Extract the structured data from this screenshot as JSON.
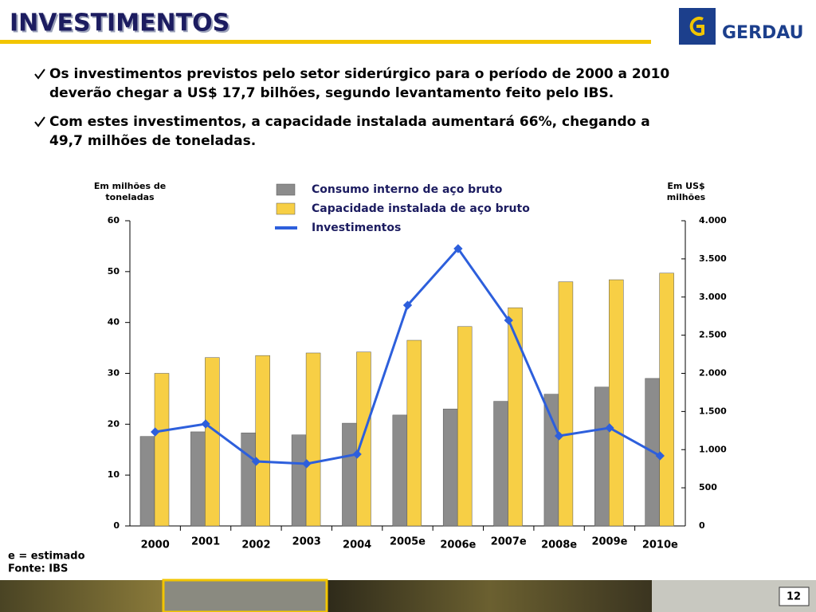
{
  "header": {
    "title": "INVESTIMENTOS",
    "logo": "GERDAU"
  },
  "bullets": [
    [
      "Os investimentos previstos pelo setor siderúrgico para o período de 2000 a 2010",
      "deverão chegar a US$ 17,7 bilhões, segundo levantamento feito pelo IBS."
    ],
    [
      "Com estes investimentos, a capacidade instalada aumentará 66%, chegando a",
      "49,7 milhões de toneladas."
    ]
  ],
  "chart_data": {
    "type": "bar",
    "ylabel": [
      "Em milhões de",
      "toneladas"
    ],
    "y2label": [
      "Em US$",
      "milhões"
    ],
    "categories": [
      "2000",
      "2001",
      "2002",
      "2003",
      "2004",
      "2005e",
      "2006e",
      "2007e",
      "2008e",
      "2009e",
      "2010e"
    ],
    "series": [
      {
        "name": "Consumo interno de aço bruto",
        "color": "#8c8c8c",
        "values": [
          17.6,
          18.5,
          18.3,
          17.9,
          20.2,
          21.8,
          23.0,
          24.5,
          25.9,
          27.3,
          29.0
        ]
      },
      {
        "name": "Capacidade instalada de aço bruto",
        "color": "#f7cf45",
        "values": [
          30.0,
          33.1,
          33.5,
          34.0,
          34.2,
          36.5,
          39.2,
          42.9,
          48.0,
          48.4,
          49.7
        ]
      },
      {
        "name": "Investimentos",
        "color": "#2d5fdc",
        "axis": "y2",
        "type": "line",
        "values": [
          1232,
          1337,
          846,
          815,
          940,
          2893,
          3634,
          2695,
          1180,
          1285,
          919
        ]
      }
    ],
    "ylim": [
      0,
      60
    ],
    "yticks": [
      0,
      10,
      20,
      30,
      40,
      50,
      60
    ],
    "y2lim": [
      0,
      4000
    ],
    "y2ticks": [
      0,
      500,
      {
        "value": 1000,
        "label": "1.000"
      },
      {
        "value": 1500,
        "label": "1.500"
      },
      {
        "value": 2000,
        "label": "2.000"
      },
      {
        "value": 2500,
        "label": "2.500"
      },
      {
        "value": 3000,
        "label": "3.000"
      },
      {
        "value": 3500,
        "label": "3.500"
      },
      {
        "value": 4000,
        "label": "4.000"
      }
    ],
    "notes": [
      "e = estimado",
      "Fonte: IBS"
    ]
  },
  "footer": {
    "page": "12"
  }
}
